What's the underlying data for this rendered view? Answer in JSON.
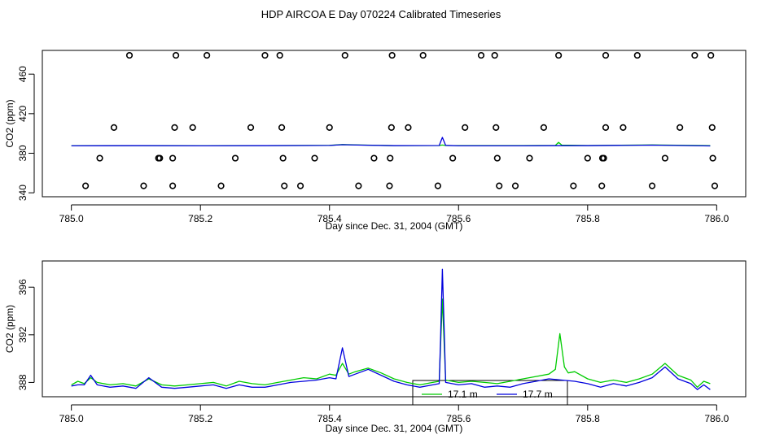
{
  "title": "HDP AIRCOA E  Day 070224  Calibrated Timeseries",
  "colors": {
    "green": "#00cc00",
    "blue": "#0000dd",
    "axis": "#000000"
  },
  "chart_data": [
    {
      "type": "scatter",
      "title": "",
      "xlabel": "Day since Dec. 31, 2004 (GMT)",
      "ylabel": "CO2 (ppm)",
      "xlim": [
        784.955,
        786.045
      ],
      "ylim": [
        336,
        484
      ],
      "xticks": [
        "785.0",
        "785.2",
        "785.4",
        "785.6",
        "785.8",
        "786.0"
      ],
      "xtick_values": [
        785.0,
        785.2,
        785.4,
        785.6,
        785.8,
        786.0
      ],
      "yticks": [
        "340",
        "380",
        "420",
        "460"
      ],
      "ytick_values": [
        340,
        380,
        420,
        460
      ],
      "series": [
        {
          "name": "",
          "kind": "points",
          "points": [
            [
              785.09,
              479
            ],
            [
              785.162,
              479
            ],
            [
              785.21,
              479
            ],
            [
              785.3,
              479
            ],
            [
              785.323,
              479
            ],
            [
              785.424,
              479
            ],
            [
              785.497,
              479
            ],
            [
              785.545,
              479
            ],
            [
              785.635,
              479
            ],
            [
              785.656,
              479
            ],
            [
              785.755,
              479
            ],
            [
              785.828,
              479
            ],
            [
              785.877,
              479
            ],
            [
              785.966,
              479
            ],
            [
              785.991,
              479
            ],
            [
              785.066,
              406
            ],
            [
              785.16,
              406
            ],
            [
              785.188,
              406
            ],
            [
              785.278,
              406
            ],
            [
              785.326,
              406
            ],
            [
              785.4,
              406
            ],
            [
              785.496,
              406
            ],
            [
              785.522,
              406
            ],
            [
              785.61,
              406
            ],
            [
              785.658,
              406
            ],
            [
              785.732,
              406
            ],
            [
              785.828,
              406
            ],
            [
              785.855,
              406
            ],
            [
              785.943,
              406
            ],
            [
              785.993,
              406
            ],
            [
              785.044,
              375
            ],
            [
              785.135,
              375
            ],
            [
              785.137,
              375
            ],
            [
              785.157,
              375
            ],
            [
              785.254,
              375
            ],
            [
              785.328,
              375
            ],
            [
              785.377,
              375
            ],
            [
              785.469,
              375
            ],
            [
              785.494,
              375
            ],
            [
              785.591,
              375
            ],
            [
              785.66,
              375
            ],
            [
              785.71,
              375
            ],
            [
              785.8,
              375
            ],
            [
              785.823,
              375
            ],
            [
              785.825,
              375
            ],
            [
              785.92,
              375
            ],
            [
              785.994,
              375
            ],
            [
              785.022,
              347
            ],
            [
              785.112,
              347
            ],
            [
              785.157,
              347
            ],
            [
              785.232,
              347
            ],
            [
              785.33,
              347
            ],
            [
              785.355,
              347
            ],
            [
              785.445,
              347
            ],
            [
              785.493,
              347
            ],
            [
              785.568,
              347
            ],
            [
              785.663,
              347
            ],
            [
              785.688,
              347
            ],
            [
              785.778,
              347
            ],
            [
              785.822,
              347
            ],
            [
              785.9,
              347
            ],
            [
              785.997,
              347
            ]
          ]
        },
        {
          "name": "",
          "kind": "line",
          "color": "#00cc00",
          "x": [
            785.0,
            785.1,
            785.2,
            785.3,
            785.4,
            785.42,
            785.45,
            785.5,
            785.57,
            785.575,
            785.58,
            785.6,
            785.7,
            785.75,
            785.755,
            785.76,
            785.8,
            785.9,
            785.99
          ],
          "y": [
            387.5,
            387.6,
            387.5,
            387.7,
            388.0,
            388.8,
            388.3,
            387.6,
            387.8,
            388.3,
            387.8,
            387.7,
            387.7,
            387.9,
            391.0,
            388.2,
            387.8,
            388.4,
            387.6
          ]
        },
        {
          "name": "",
          "kind": "line",
          "color": "#0000dd",
          "x": [
            785.0,
            785.1,
            785.2,
            785.3,
            785.4,
            785.42,
            785.45,
            785.5,
            785.57,
            785.575,
            785.58,
            785.6,
            785.7,
            785.75,
            785.8,
            785.9,
            785.99
          ],
          "y": [
            387.5,
            387.6,
            387.5,
            387.6,
            387.9,
            388.6,
            388.2,
            387.6,
            387.8,
            396.0,
            388.0,
            387.5,
            387.5,
            387.6,
            387.6,
            388.2,
            387.4
          ]
        }
      ]
    },
    {
      "type": "line",
      "title": "",
      "xlabel": "Day since Dec. 31, 2004 (GMT)",
      "ylabel": "CO2 (ppm)",
      "xlim": [
        784.955,
        786.045
      ],
      "ylim": [
        386.8,
        398.2
      ],
      "xticks": [
        "785.0",
        "785.2",
        "785.4",
        "785.6",
        "785.8",
        "786.0"
      ],
      "xtick_values": [
        785.0,
        785.2,
        785.4,
        785.6,
        785.8,
        786.0
      ],
      "yticks": [
        "388",
        "392",
        "396"
      ],
      "ytick_values": [
        388,
        392,
        396
      ],
      "legend": {
        "placement": "bottom-center",
        "entries": [
          "17.1 m",
          "17.7 m"
        ]
      },
      "series": [
        {
          "name": "17.1 m",
          "color": "#00cc00",
          "x": [
            785.0,
            785.01,
            785.02,
            785.03,
            785.04,
            785.06,
            785.08,
            785.1,
            785.12,
            785.14,
            785.16,
            785.18,
            785.2,
            785.22,
            785.24,
            785.26,
            785.28,
            785.3,
            785.32,
            785.34,
            785.36,
            785.38,
            785.4,
            785.41,
            785.42,
            785.43,
            785.44,
            785.46,
            785.48,
            785.5,
            785.52,
            785.54,
            785.56,
            785.57,
            785.575,
            785.58,
            785.6,
            785.62,
            785.64,
            785.66,
            785.68,
            785.7,
            785.72,
            785.74,
            785.75,
            785.757,
            785.764,
            785.77,
            785.78,
            785.8,
            785.82,
            785.84,
            785.86,
            785.88,
            785.9,
            785.92,
            785.94,
            785.96,
            785.97,
            785.98,
            785.99
          ],
          "y": [
            387.8,
            388.1,
            387.9,
            388.4,
            388.0,
            387.8,
            387.9,
            387.7,
            388.3,
            387.8,
            387.7,
            387.8,
            387.9,
            388.0,
            387.7,
            388.1,
            387.9,
            387.8,
            388.0,
            388.2,
            388.4,
            388.3,
            388.7,
            388.6,
            389.6,
            388.7,
            388.9,
            389.2,
            388.8,
            388.3,
            388.0,
            387.8,
            388.0,
            388.1,
            395.0,
            388.2,
            388.0,
            388.1,
            388.0,
            387.9,
            388.1,
            388.3,
            388.5,
            388.7,
            389.1,
            392.1,
            389.3,
            388.8,
            388.9,
            388.3,
            388.0,
            388.2,
            388.0,
            388.3,
            388.7,
            389.6,
            388.6,
            388.2,
            387.6,
            388.1,
            387.9
          ]
        },
        {
          "name": "17.7 m",
          "color": "#0000dd",
          "x": [
            785.0,
            785.01,
            785.02,
            785.03,
            785.04,
            785.06,
            785.08,
            785.1,
            785.12,
            785.14,
            785.16,
            785.18,
            785.2,
            785.22,
            785.24,
            785.26,
            785.28,
            785.3,
            785.32,
            785.34,
            785.36,
            785.38,
            785.4,
            785.41,
            785.42,
            785.43,
            785.44,
            785.46,
            785.48,
            785.5,
            785.52,
            785.54,
            785.56,
            785.57,
            785.572,
            785.575,
            785.578,
            785.58,
            785.6,
            785.62,
            785.64,
            785.66,
            785.68,
            785.7,
            785.72,
            785.74,
            785.76,
            785.78,
            785.8,
            785.82,
            785.84,
            785.86,
            785.88,
            785.9,
            785.92,
            785.94,
            785.96,
            785.97,
            785.98,
            785.99
          ],
          "y": [
            387.7,
            387.8,
            387.8,
            388.6,
            387.8,
            387.6,
            387.7,
            387.5,
            388.4,
            387.6,
            387.5,
            387.6,
            387.7,
            387.8,
            387.5,
            387.8,
            387.6,
            387.6,
            387.8,
            388.0,
            388.1,
            388.2,
            388.4,
            388.3,
            390.9,
            388.5,
            388.7,
            389.1,
            388.6,
            388.1,
            387.8,
            387.6,
            387.8,
            387.9,
            391.5,
            397.5,
            392.0,
            388.0,
            387.8,
            387.9,
            387.6,
            387.7,
            387.6,
            387.9,
            388.1,
            388.3,
            388.2,
            388.1,
            387.9,
            387.6,
            387.9,
            387.7,
            388.0,
            388.4,
            389.3,
            388.3,
            387.9,
            387.4,
            387.8,
            387.4
          ]
        }
      ]
    }
  ]
}
